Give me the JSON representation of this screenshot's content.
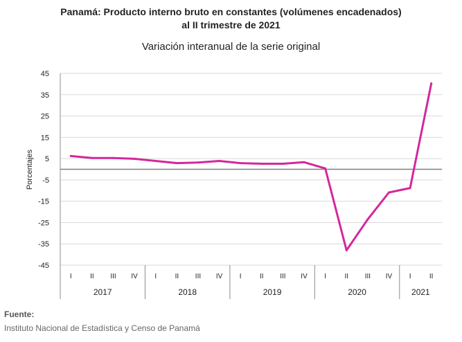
{
  "chart_data": {
    "type": "line",
    "title": "Panamá: Producto interno bruto en constantes (volúmenes encadenados)",
    "title_line2": "al II trimestre de 2021",
    "subtitle": "Variación interanual de la serie original",
    "ylabel": "Porcentajes",
    "ylim": [
      -45,
      45
    ],
    "yticks": [
      45,
      35,
      25,
      15,
      5,
      -5,
      -15,
      -25,
      -35,
      -45
    ],
    "reference_line": 0,
    "quarter_labels": [
      "I",
      "II",
      "III",
      "IV",
      "I",
      "II",
      "III",
      "IV",
      "I",
      "II",
      "III",
      "IV",
      "I",
      "II",
      "III",
      "IV",
      "I",
      "II"
    ],
    "years": [
      {
        "label": "2017",
        "quarters": 4
      },
      {
        "label": "2018",
        "quarters": 4
      },
      {
        "label": "2019",
        "quarters": 4
      },
      {
        "label": "2020",
        "quarters": 4
      },
      {
        "label": "2021",
        "quarters": 2
      }
    ],
    "series": [
      {
        "values": [
          6.2,
          5.3,
          5.3,
          4.9,
          3.9,
          2.9,
          3.2,
          3.9,
          2.9,
          2.6,
          2.6,
          3.3,
          0.4,
          -38.0,
          -23.5,
          -10.9,
          -8.8,
          40.3
        ],
        "color": "#d4279b"
      }
    ],
    "grid": true,
    "legend": "none"
  },
  "source": {
    "label": "Fuente:",
    "text": "Instituto Nacional de Estadística y Censo de Panamá"
  }
}
